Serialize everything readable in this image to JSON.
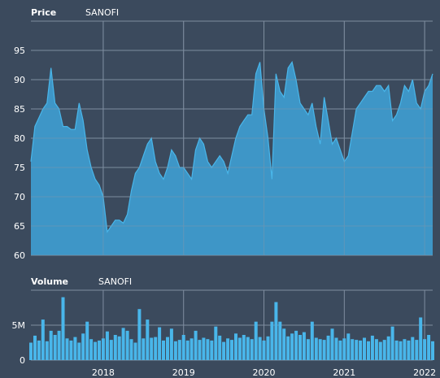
{
  "colors": {
    "background": "#3b4a5d",
    "fill": "#3f9fd3",
    "line": "#49b6ea",
    "grid": "#7f8da0",
    "text": "#ffffff"
  },
  "chart_data": [
    {
      "type": "area",
      "title": "Price",
      "symbol": "SANOFI",
      "ylim": [
        60,
        100
      ],
      "yticks": [
        60,
        65,
        70,
        75,
        80,
        85,
        90,
        95
      ],
      "xlim": [
        2017.1,
        2022.1
      ],
      "xgrid": [
        2018,
        2019,
        2020,
        2021,
        2022
      ],
      "grid": true,
      "series": [
        {
          "x": [
            2017.1,
            2017.15,
            2017.2,
            2017.25,
            2017.3,
            2017.35,
            2017.4,
            2017.45,
            2017.5,
            2017.55,
            2017.6,
            2017.65,
            2017.7,
            2017.75,
            2017.8,
            2017.85,
            2017.9,
            2017.95,
            2018.0,
            2018.05,
            2018.1,
            2018.15,
            2018.2,
            2018.25,
            2018.3,
            2018.35,
            2018.4,
            2018.45,
            2018.5,
            2018.55,
            2018.6,
            2018.65,
            2018.7,
            2018.75,
            2018.8,
            2018.85,
            2018.9,
            2018.95,
            2019.0,
            2019.05,
            2019.1,
            2019.15,
            2019.2,
            2019.25,
            2019.3,
            2019.35,
            2019.4,
            2019.45,
            2019.5,
            2019.55,
            2019.6,
            2019.65,
            2019.7,
            2019.75,
            2019.8,
            2019.85,
            2019.9,
            2019.95,
            2020.0,
            2020.05,
            2020.1,
            2020.15,
            2020.2,
            2020.25,
            2020.3,
            2020.35,
            2020.4,
            2020.45,
            2020.5,
            2020.55,
            2020.6,
            2020.65,
            2020.7,
            2020.75,
            2020.8,
            2020.85,
            2020.9,
            2020.95,
            2021.0,
            2021.05,
            2021.1,
            2021.15,
            2021.2,
            2021.25,
            2021.3,
            2021.35,
            2021.4,
            2021.45,
            2021.5,
            2021.55,
            2021.6,
            2021.65,
            2021.7,
            2021.75,
            2021.8,
            2021.85,
            2021.9,
            2021.95,
            2022.0,
            2022.05,
            2022.1
          ],
          "y": [
            76,
            82,
            83.5,
            85,
            86,
            92,
            86,
            85,
            82,
            82,
            81.5,
            81.5,
            86,
            83,
            78,
            75,
            73,
            72,
            70,
            64,
            65,
            66,
            66,
            65.5,
            67,
            71,
            74,
            75,
            77,
            79,
            80,
            76,
            74,
            73,
            75,
            78,
            77,
            75,
            75,
            74,
            73,
            78,
            80,
            79,
            76,
            75,
            76,
            77,
            76,
            74,
            77,
            80,
            82,
            83,
            84,
            84,
            91,
            93,
            85,
            80,
            73,
            91,
            88,
            87,
            92,
            93,
            90,
            86,
            85,
            84,
            86,
            82,
            79,
            87,
            83,
            79,
            80,
            78,
            76,
            77,
            81,
            85,
            86,
            87,
            88,
            88,
            89,
            89,
            88,
            89,
            83,
            84,
            86,
            89,
            88,
            90,
            86,
            85,
            88,
            89,
            91
          ]
        }
      ]
    },
    {
      "type": "bar",
      "title": "Volume",
      "symbol": "SANOFI",
      "ylim": [
        0,
        10
      ],
      "yticks": [
        0,
        5
      ],
      "ytick_labels": [
        "0",
        "5M"
      ],
      "xlim": [
        2017.1,
        2022.1
      ],
      "xgrid": [
        2018,
        2019,
        2020,
        2021,
        2022
      ],
      "xtick_labels": [
        "2018",
        "2019",
        "2020",
        "2021",
        "2022"
      ],
      "unit": "M",
      "grid": true,
      "series": [
        {
          "x": [
            2017.1,
            2017.15,
            2017.2,
            2017.25,
            2017.3,
            2017.35,
            2017.4,
            2017.45,
            2017.5,
            2017.55,
            2017.6,
            2017.65,
            2017.7,
            2017.75,
            2017.8,
            2017.85,
            2017.9,
            2017.95,
            2018.0,
            2018.05,
            2018.1,
            2018.15,
            2018.2,
            2018.25,
            2018.3,
            2018.35,
            2018.4,
            2018.45,
            2018.5,
            2018.55,
            2018.6,
            2018.65,
            2018.7,
            2018.75,
            2018.8,
            2018.85,
            2018.9,
            2018.95,
            2019.0,
            2019.05,
            2019.1,
            2019.15,
            2019.2,
            2019.25,
            2019.3,
            2019.35,
            2019.4,
            2019.45,
            2019.5,
            2019.55,
            2019.6,
            2019.65,
            2019.7,
            2019.75,
            2019.8,
            2019.85,
            2019.9,
            2019.95,
            2020.0,
            2020.05,
            2020.1,
            2020.15,
            2020.2,
            2020.25,
            2020.3,
            2020.35,
            2020.4,
            2020.45,
            2020.5,
            2020.55,
            2020.6,
            2020.65,
            2020.7,
            2020.75,
            2020.8,
            2020.85,
            2020.9,
            2020.95,
            2021.0,
            2021.05,
            2021.1,
            2021.15,
            2021.2,
            2021.25,
            2021.3,
            2021.35,
            2021.4,
            2021.45,
            2021.5,
            2021.55,
            2021.6,
            2021.65,
            2021.7,
            2021.75,
            2021.8,
            2021.85,
            2021.9,
            2021.95,
            2022.0,
            2022.05,
            2022.1
          ],
          "y": [
            2.5,
            3.5,
            2.8,
            5.8,
            2.7,
            4.2,
            3.6,
            4.2,
            9,
            3.1,
            2.8,
            3.3,
            2.5,
            3.8,
            5.5,
            3.0,
            2.6,
            2.8,
            3.1,
            4.1,
            2.9,
            3.6,
            3.4,
            4.6,
            4.2,
            3.0,
            2.5,
            7.3,
            3.1,
            5.8,
            3.2,
            3.3,
            4.7,
            2.8,
            3.3,
            4.5,
            2.7,
            2.9,
            3.6,
            2.8,
            3.1,
            4.2,
            2.9,
            3.2,
            3.0,
            2.8,
            4.8,
            3.5,
            2.6,
            3.1,
            2.9,
            3.8,
            3.2,
            3.6,
            3.3,
            3.0,
            5.5,
            3.3,
            2.8,
            3.4,
            5.5,
            8.3,
            5.5,
            4.5,
            3.4,
            3.8,
            4.2,
            3.6,
            4.0,
            3.0,
            5.5,
            3.2,
            3.0,
            2.9,
            3.5,
            4.5,
            3.2,
            2.8,
            3.1,
            3.8,
            3.0,
            2.9,
            2.8,
            3.2,
            2.7,
            3.5,
            3.0,
            2.6,
            2.9,
            3.4,
            4.8,
            2.8,
            2.7,
            3.0,
            2.8,
            3.3,
            2.9,
            6.1,
            3.0,
            3.6,
            2.7
          ]
        }
      ]
    }
  ]
}
